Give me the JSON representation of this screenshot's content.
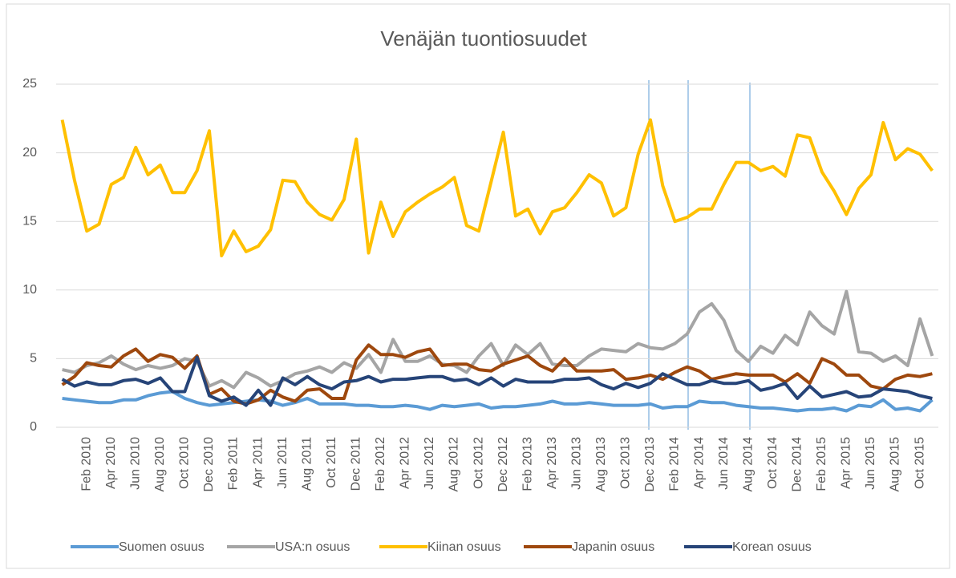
{
  "chart_data": {
    "type": "line",
    "title": "Venäjän tuontiosuudet",
    "categories": [
      null,
      null,
      "Feb 2010",
      null,
      "Apr 2010",
      null,
      "Jun 2010",
      null,
      "Aug 2010",
      null,
      "Oct 2010",
      null,
      "Dec 2010",
      null,
      "Feb 2011",
      null,
      "Apr 2011",
      null,
      "Jun 2011",
      null,
      "Aug 2011",
      null,
      "Oct 2011",
      null,
      "Dec 2011",
      null,
      "Feb 2012",
      null,
      "Apr 2012",
      null,
      "Jun 2012",
      null,
      "Aug 2012",
      null,
      "Oct 2012",
      null,
      "Dec 2012",
      null,
      "Feb 2013",
      null,
      "Apr 2013",
      null,
      "Jun 2013",
      null,
      "Aug 2013",
      null,
      "Oct 2013",
      null,
      "Dec 2013",
      null,
      "Feb 2014",
      null,
      "Apr 2014",
      null,
      "Jun 2014",
      null,
      "Aug 2014",
      null,
      "Oct 2014",
      null,
      "Dec 2014",
      null,
      "Feb 2015",
      null,
      "Apr 2015",
      null,
      "Jun 2015",
      null,
      "Aug 2015",
      null,
      "Oct 2015",
      null
    ],
    "series": [
      {
        "name": "Suomen osuus",
        "color": "#5b9bd5",
        "values": [
          2.1,
          2.0,
          1.9,
          1.8,
          1.8,
          2.0,
          2.0,
          2.3,
          2.5,
          2.6,
          2.1,
          1.8,
          1.6,
          1.7,
          1.8,
          1.9,
          2.0,
          1.9,
          1.6,
          1.8,
          2.1,
          1.7,
          1.7,
          1.7,
          1.6,
          1.6,
          1.5,
          1.5,
          1.6,
          1.5,
          1.3,
          1.6,
          1.5,
          1.6,
          1.7,
          1.4,
          1.5,
          1.5,
          1.6,
          1.7,
          1.9,
          1.7,
          1.7,
          1.8,
          1.7,
          1.6,
          1.6,
          1.6,
          1.7,
          1.4,
          1.5,
          1.5,
          1.9,
          1.8,
          1.8,
          1.6,
          1.5,
          1.4,
          1.4,
          1.3,
          1.2,
          1.3,
          1.3,
          1.4,
          1.2,
          1.6,
          1.5,
          2.0,
          1.3,
          1.4,
          1.2,
          2.0
        ]
      },
      {
        "name": "USA:n osuus",
        "color": "#a5a5a5",
        "values": [
          4.2,
          4.0,
          4.5,
          4.7,
          5.2,
          4.6,
          4.2,
          4.5,
          4.3,
          4.5,
          5.0,
          4.8,
          3.0,
          3.4,
          2.9,
          4.0,
          3.6,
          3.0,
          3.4,
          3.9,
          4.1,
          4.4,
          4.0,
          4.7,
          4.3,
          5.3,
          4.0,
          6.4,
          4.8,
          4.8,
          5.2,
          4.6,
          4.5,
          4.0,
          5.2,
          6.1,
          4.5,
          6.0,
          5.3,
          6.1,
          4.6,
          4.5,
          4.5,
          5.2,
          5.7,
          5.6,
          5.5,
          6.1,
          5.8,
          5.7,
          6.1,
          6.8,
          8.4,
          9.0,
          7.8,
          5.6,
          4.8,
          5.9,
          5.4,
          6.7,
          6.0,
          8.4,
          7.4,
          6.8,
          9.9,
          5.5,
          5.4,
          4.8,
          5.2,
          4.5,
          7.9,
          5.2
        ]
      },
      {
        "name": "Kiinan osuus",
        "color": "#ffc000",
        "values": [
          22.4,
          18.0,
          14.3,
          14.8,
          17.7,
          18.2,
          20.4,
          18.4,
          19.1,
          17.1,
          17.1,
          18.7,
          21.6,
          12.5,
          14.3,
          12.8,
          13.2,
          14.4,
          18.0,
          17.9,
          16.4,
          15.5,
          15.1,
          16.6,
          21.0,
          12.7,
          16.4,
          13.9,
          15.7,
          16.4,
          17.0,
          17.5,
          18.2,
          14.7,
          14.3,
          17.9,
          21.5,
          15.4,
          15.9,
          14.1,
          15.7,
          16.0,
          17.1,
          18.4,
          17.8,
          15.4,
          16.0,
          19.9,
          22.4,
          17.6,
          15.0,
          15.3,
          15.9,
          15.9,
          17.7,
          19.3,
          19.3,
          18.7,
          19.0,
          18.3,
          21.3,
          21.1,
          18.6,
          17.2,
          15.5,
          17.4,
          18.4,
          22.2,
          19.5,
          20.3,
          19.9,
          18.7
        ]
      },
      {
        "name": "Japanin osuus",
        "color": "#9e480e",
        "values": [
          3.1,
          3.7,
          4.7,
          4.5,
          4.4,
          5.2,
          5.7,
          4.8,
          5.3,
          5.1,
          4.3,
          5.2,
          2.4,
          2.8,
          1.9,
          1.7,
          2.0,
          2.7,
          2.2,
          1.9,
          2.7,
          2.8,
          2.1,
          2.1,
          4.9,
          6.0,
          5.3,
          5.3,
          5.1,
          5.5,
          5.7,
          4.5,
          4.6,
          4.6,
          4.2,
          4.1,
          4.6,
          4.9,
          5.2,
          4.5,
          4.1,
          5.0,
          4.1,
          4.1,
          4.1,
          4.2,
          3.5,
          3.6,
          3.8,
          3.5,
          4.0,
          4.4,
          4.1,
          3.5,
          3.7,
          3.9,
          3.8,
          3.8,
          3.8,
          3.3,
          3.9,
          3.2,
          5.0,
          4.6,
          3.8,
          3.8,
          3.0,
          2.8,
          3.5,
          3.8,
          3.7,
          3.9
        ]
      },
      {
        "name": "Korean osuus",
        "color": "#264478",
        "values": [
          3.5,
          3.0,
          3.3,
          3.1,
          3.1,
          3.4,
          3.5,
          3.2,
          3.6,
          2.6,
          2.6,
          5.1,
          2.3,
          1.9,
          2.2,
          1.6,
          2.7,
          1.6,
          3.6,
          3.1,
          3.7,
          3.1,
          2.8,
          3.3,
          3.4,
          3.7,
          3.3,
          3.5,
          3.5,
          3.6,
          3.7,
          3.7,
          3.4,
          3.5,
          3.1,
          3.6,
          3.0,
          3.5,
          3.3,
          3.3,
          3.3,
          3.5,
          3.5,
          3.6,
          3.1,
          2.8,
          3.2,
          2.9,
          3.2,
          3.9,
          3.5,
          3.1,
          3.1,
          3.4,
          3.2,
          3.2,
          3.4,
          2.7,
          2.9,
          3.2,
          2.1,
          3.0,
          2.2,
          2.4,
          2.6,
          2.2,
          2.3,
          2.8,
          2.7,
          2.6,
          2.3,
          2.1
        ]
      }
    ],
    "ylim": [
      0,
      25
    ],
    "yticks": [
      0,
      5,
      10,
      15,
      20,
      25
    ],
    "grid": true,
    "legend": "bottom"
  }
}
